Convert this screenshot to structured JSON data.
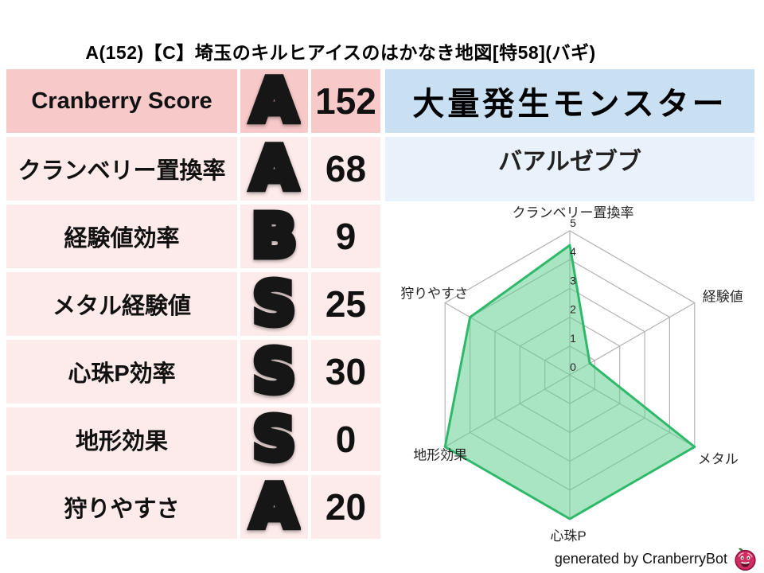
{
  "title": "A(152)【C】埼玉のキルヒアイスのはかなき地図[特58](バギ)",
  "stats_table": {
    "rows": [
      {
        "label": "Cranberry Score",
        "grade": "A",
        "grade_style": "gold",
        "value": "152"
      },
      {
        "label": "クランベリー置換率",
        "grade": "A",
        "grade_style": "gold",
        "value": "68"
      },
      {
        "label": "経験値効率",
        "grade": "B",
        "grade_style": "silver",
        "value": "9"
      },
      {
        "label": "メタル経験値",
        "grade": "S",
        "grade_style": "rainbow",
        "value": "25"
      },
      {
        "label": "心珠P効率",
        "grade": "S",
        "grade_style": "rainbow",
        "value": "30"
      },
      {
        "label": "地形効果",
        "grade": "S",
        "grade_style": "rainbow",
        "value": "0"
      },
      {
        "label": "狩りやすさ",
        "grade": "A",
        "grade_style": "gold",
        "value": "20"
      }
    ]
  },
  "monster_panel": {
    "header": "大量発生モンスター",
    "name": "バアルゼブブ"
  },
  "chart_data": {
    "type": "radar",
    "axes": [
      "クランベリー置換率",
      "経験値",
      "メタル",
      "心珠P",
      "地形効果",
      "狩りやすさ"
    ],
    "values": [
      4.5,
      0.8,
      5,
      5,
      5,
      4
    ],
    "max": 5,
    "ticks": [
      0,
      1,
      2,
      3,
      4,
      5
    ],
    "grid": true,
    "legend": "none",
    "fill_color": "#63cf92",
    "fill_opacity": 0.55,
    "stroke_color": "#2eb96a",
    "grid_color": "#b2b2b2",
    "label_color": "#262626"
  },
  "footer": {
    "credit": "generated by CranberryBot",
    "icon": "cranberry-mascot-icon"
  },
  "colors": {
    "row_header_pink": "#f7c9c9",
    "row_pink": "#fdeaea",
    "monster_header_blue": "#c9e0f3",
    "monster_row_blue": "#e9f2fb",
    "grade_gold": "#f5c518",
    "grade_silver": "#c9ccd4",
    "grade_rainbow": "#ff9ec4",
    "mascot_red": "#d12d62"
  }
}
